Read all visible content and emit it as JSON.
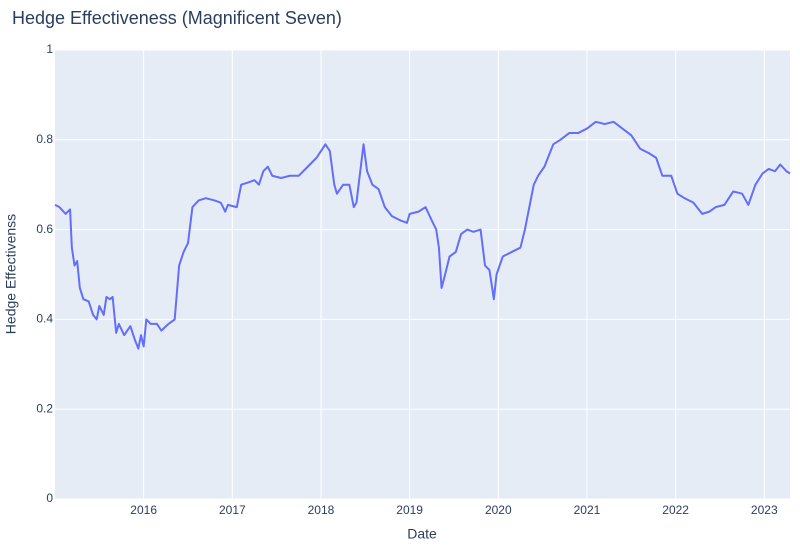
{
  "chart_data": {
    "type": "line",
    "title": "Hedge Effectiveness (Magnificent Seven)",
    "x_label": "Date",
    "y_label": "Hedge Effectivenss",
    "xlim": [
      2015.0,
      2023.29
    ],
    "xticks": [
      2016,
      2017,
      2018,
      2019,
      2020,
      2021,
      2022,
      2023
    ],
    "ylim": [
      0,
      1
    ],
    "yticks": [
      0,
      0.2,
      0.4,
      0.6,
      0.8,
      1
    ],
    "grid": true,
    "series": [
      {
        "name": "Hedge Effectivenss",
        "color": "#636efa",
        "x": [
          2015.0,
          2015.05,
          2015.12,
          2015.17,
          2015.19,
          2015.22,
          2015.25,
          2015.28,
          2015.32,
          2015.38,
          2015.43,
          2015.47,
          2015.5,
          2015.55,
          2015.58,
          2015.62,
          2015.65,
          2015.69,
          2015.72,
          2015.78,
          2015.85,
          2015.9,
          2015.94,
          2015.97,
          2016.0,
          2016.03,
          2016.08,
          2016.15,
          2016.2,
          2016.28,
          2016.35,
          2016.4,
          2016.45,
          2016.5,
          2016.55,
          2016.62,
          2016.7,
          2016.8,
          2016.87,
          2016.92,
          2016.95,
          2017.05,
          2017.1,
          2017.18,
          2017.25,
          2017.3,
          2017.35,
          2017.4,
          2017.45,
          2017.55,
          2017.65,
          2017.75,
          2017.85,
          2017.95,
          2018.0,
          2018.05,
          2018.1,
          2018.15,
          2018.18,
          2018.25,
          2018.32,
          2018.37,
          2018.4,
          2018.48,
          2018.52,
          2018.58,
          2018.65,
          2018.72,
          2018.8,
          2018.9,
          2018.97,
          2019.0,
          2019.1,
          2019.18,
          2019.25,
          2019.3,
          2019.33,
          2019.36,
          2019.4,
          2019.45,
          2019.52,
          2019.58,
          2019.65,
          2019.72,
          2019.8,
          2019.85,
          2019.9,
          2019.95,
          2019.98,
          2020.05,
          2020.15,
          2020.25,
          2020.3,
          2020.4,
          2020.45,
          2020.52,
          2020.62,
          2020.7,
          2020.8,
          2020.9,
          2021.0,
          2021.1,
          2021.2,
          2021.3,
          2021.4,
          2021.5,
          2021.6,
          2021.7,
          2021.78,
          2021.85,
          2021.95,
          2022.02,
          2022.1,
          2022.2,
          2022.3,
          2022.38,
          2022.45,
          2022.55,
          2022.65,
          2022.75,
          2022.82,
          2022.9,
          2022.98,
          2023.05,
          2023.12,
          2023.18,
          2023.25,
          2023.29
        ],
        "values": [
          0.655,
          0.65,
          0.635,
          0.645,
          0.56,
          0.52,
          0.53,
          0.47,
          0.445,
          0.44,
          0.41,
          0.4,
          0.43,
          0.41,
          0.45,
          0.445,
          0.45,
          0.37,
          0.39,
          0.365,
          0.385,
          0.355,
          0.335,
          0.365,
          0.34,
          0.4,
          0.39,
          0.39,
          0.375,
          0.39,
          0.4,
          0.52,
          0.55,
          0.57,
          0.65,
          0.665,
          0.67,
          0.665,
          0.66,
          0.64,
          0.655,
          0.65,
          0.7,
          0.705,
          0.71,
          0.7,
          0.73,
          0.74,
          0.72,
          0.715,
          0.72,
          0.72,
          0.74,
          0.76,
          0.775,
          0.79,
          0.775,
          0.7,
          0.68,
          0.7,
          0.7,
          0.65,
          0.66,
          0.79,
          0.73,
          0.7,
          0.69,
          0.65,
          0.63,
          0.62,
          0.615,
          0.635,
          0.64,
          0.65,
          0.62,
          0.6,
          0.56,
          0.47,
          0.5,
          0.54,
          0.55,
          0.59,
          0.6,
          0.595,
          0.6,
          0.52,
          0.51,
          0.445,
          0.5,
          0.54,
          0.55,
          0.56,
          0.6,
          0.7,
          0.72,
          0.74,
          0.79,
          0.8,
          0.815,
          0.815,
          0.825,
          0.84,
          0.835,
          0.84,
          0.825,
          0.81,
          0.78,
          0.77,
          0.76,
          0.72,
          0.72,
          0.68,
          0.67,
          0.66,
          0.635,
          0.64,
          0.65,
          0.655,
          0.685,
          0.68,
          0.655,
          0.7,
          0.725,
          0.735,
          0.73,
          0.745,
          0.73,
          0.725
        ]
      }
    ]
  }
}
